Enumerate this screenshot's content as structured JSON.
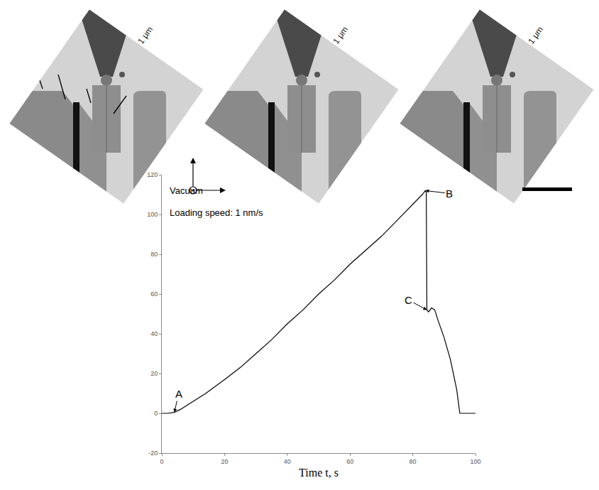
{
  "micrographs": [
    {
      "scale_label": "1 μm"
    },
    {
      "scale_label": "1 μm"
    },
    {
      "scale_label": "1 μm"
    }
  ],
  "chart_data": {
    "type": "line",
    "x_label": "Time t, s",
    "x": [
      0,
      2,
      4,
      6,
      8,
      10,
      14,
      20,
      25,
      30,
      35,
      40,
      45,
      50,
      55,
      60,
      65,
      70,
      75,
      80,
      83,
      84,
      84.3,
      84.5,
      85,
      86,
      87,
      88,
      90,
      92,
      94,
      95,
      96,
      100
    ],
    "values": [
      0,
      0,
      0.5,
      2,
      4,
      6,
      10,
      17,
      23,
      30,
      37,
      45,
      52,
      60,
      67,
      75,
      82,
      89,
      97,
      105,
      110,
      112,
      111,
      52,
      51,
      53,
      52,
      47,
      38,
      27,
      12,
      0,
      0,
      0
    ],
    "color": "#000000",
    "xlim": [
      0,
      100
    ],
    "xticks": [
      0,
      20,
      40,
      60,
      80,
      100
    ],
    "ylim": [
      -20,
      120
    ],
    "yticks": [
      -20,
      0,
      20,
      40,
      60,
      80,
      100,
      120
    ],
    "grid": false,
    "annotations": [
      {
        "text": "Vacuum",
        "x": 2,
        "y": 112
      },
      {
        "text": "Loading speed: 1 nm/s",
        "x": 2,
        "y": 101
      },
      {
        "text": "A",
        "x": 4,
        "y": 0.5
      },
      {
        "text": "B",
        "x": 84,
        "y": 112
      },
      {
        "text": "C",
        "x": 84.5,
        "y": 52
      }
    ]
  }
}
